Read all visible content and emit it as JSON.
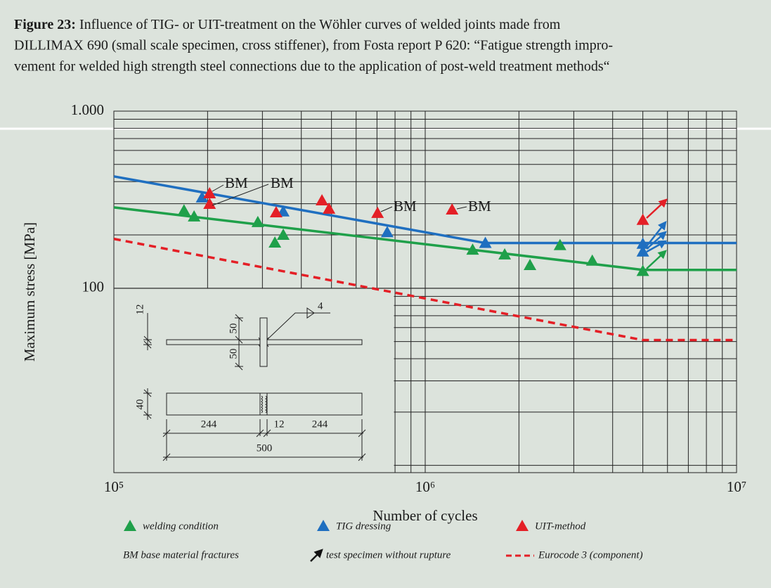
{
  "chart_data": {
    "type": "scatter",
    "title_label": "Figure 23:",
    "title_lines": [
      "Influence of TIG- or UIT-treatment on the Wöhler curves of welded joints made from",
      "DILLIMAX 690 (small scale specimen, cross stiffener), from Fosta report P 620: “Fatigue strength impro-",
      "vement for welded high strength steel connections due to the application of post-weld treatment methods“"
    ],
    "xlabel": "Number of cycles",
    "ylabel": "Maximum stress [MPa]",
    "xlog": true,
    "ylog": true,
    "grid": true,
    "xlim": [
      100000,
      10000000
    ],
    "ylim": [
      9.1,
      1000
    ],
    "xticks": [
      {
        "value": 100000,
        "label": "10⁵"
      },
      {
        "value": 1000000,
        "label": "10⁶"
      },
      {
        "value": 10000000,
        "label": "10⁷"
      }
    ],
    "yticks": [
      100,
      {
        "value": 1000,
        "label": "1.000"
      }
    ],
    "series": [
      {
        "name": "welding condition",
        "color": "#1fa04a",
        "x": [
          168000,
          181000,
          290000,
          329000,
          350000,
          1420000,
          1800000,
          2170000,
          2710000,
          3440000,
          5000000
        ],
        "values": [
          275,
          254,
          236,
          181,
          200,
          165,
          155,
          135,
          175,
          143,
          125
        ]
      },
      {
        "name": "TIG dressing",
        "color": "#1f6fc0",
        "x": [
          192000,
          350000,
          755000,
          1560000,
          5000000,
          5000000
        ],
        "values": [
          325,
          271,
          207,
          180,
          178,
          161
        ]
      },
      {
        "name": "UIT-method",
        "color": "#e41f26",
        "x": [
          203000,
          203000,
          332000,
          466000,
          491000,
          703000,
          1220000,
          5000000
        ],
        "values": [
          343,
          299,
          268,
          313,
          281,
          266,
          278,
          243
        ]
      }
    ],
    "lines": [
      {
        "color": "#1f6fc0",
        "x": [
          100000,
          1560000,
          10000000
        ],
        "values": [
          428,
          180,
          180
        ]
      },
      {
        "color": "#1fa04a",
        "x": [
          100000,
          5000000,
          10000000
        ],
        "values": [
          286,
          127,
          127
        ]
      },
      {
        "name": "Eurocode 3 (component)",
        "color": "#e41f26",
        "dashed": true,
        "x": [
          100000,
          5000000,
          10000000
        ],
        "values": [
          190,
          51,
          51
        ]
      }
    ],
    "annotations": [
      "BM",
      "BM",
      "BM",
      "BM"
    ],
    "legend_notes": [
      "BM base material fractures",
      "test specimen without rupture"
    ],
    "inset_labels": [
      "12",
      "50",
      "50",
      "4",
      "40",
      "244",
      "12",
      "244",
      "500"
    ]
  }
}
